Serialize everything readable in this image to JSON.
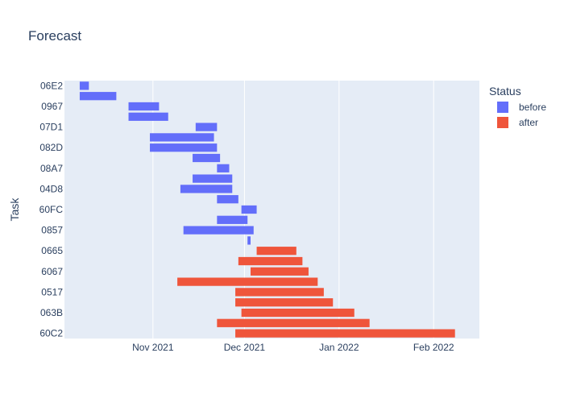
{
  "chart_data": {
    "type": "bar",
    "orientation": "horizontal-timeline",
    "title": "Forecast",
    "ylabel": "Task",
    "xlabel": "",
    "x_ticks": [
      {
        "date": "2021-11-01",
        "label": "Nov 2021"
      },
      {
        "date": "2021-12-01",
        "label": "Dec 2021"
      },
      {
        "date": "2022-01-01",
        "label": "Jan 2022"
      },
      {
        "date": "2022-02-01",
        "label": "Feb 2022"
      }
    ],
    "xlim": [
      "2021-10-03",
      "2022-02-16"
    ],
    "y_tick_labels": [
      "06E2",
      "0967",
      "07D1",
      "082D",
      "08A7",
      "04D8",
      "60FC",
      "0857",
      "0665",
      "6067",
      "0517",
      "063B",
      "60C2"
    ],
    "legend": {
      "title": "Status",
      "position": "top-right",
      "entries": [
        "before",
        "after"
      ]
    },
    "colors": {
      "before": "#636efa",
      "after": "#ef553b",
      "plot_bg": "#e5ecf6",
      "grid": "#ffffff"
    },
    "grid": true,
    "series": [
      {
        "name": "before",
        "bars": [
          {
            "row": 0,
            "start": "2021-10-08",
            "end": "2021-10-11"
          },
          {
            "row": 1,
            "start": "2021-10-08",
            "end": "2021-10-20"
          },
          {
            "row": 2,
            "start": "2021-10-24",
            "end": "2021-11-03"
          },
          {
            "row": 3,
            "start": "2021-10-24",
            "end": "2021-11-06"
          },
          {
            "row": 4,
            "start": "2021-11-15",
            "end": "2021-11-22"
          },
          {
            "row": 5,
            "start": "2021-10-31",
            "end": "2021-11-21"
          },
          {
            "row": 6,
            "start": "2021-10-31",
            "end": "2021-11-22"
          },
          {
            "row": 7,
            "start": "2021-11-14",
            "end": "2021-11-23"
          },
          {
            "row": 8,
            "start": "2021-11-22",
            "end": "2021-11-26"
          },
          {
            "row": 9,
            "start": "2021-11-14",
            "end": "2021-11-27"
          },
          {
            "row": 10,
            "start": "2021-11-10",
            "end": "2021-11-27"
          },
          {
            "row": 11,
            "start": "2021-11-22",
            "end": "2021-11-29"
          },
          {
            "row": 12,
            "start": "2021-11-30",
            "end": "2021-12-05"
          },
          {
            "row": 13,
            "start": "2021-11-22",
            "end": "2021-12-02"
          },
          {
            "row": 14,
            "start": "2021-11-11",
            "end": "2021-12-04"
          },
          {
            "row": 15,
            "start": "2021-12-02",
            "end": "2021-12-03"
          }
        ]
      },
      {
        "name": "after",
        "bars": [
          {
            "row": 16,
            "start": "2021-12-05",
            "end": "2021-12-18"
          },
          {
            "row": 17,
            "start": "2021-11-29",
            "end": "2021-12-20"
          },
          {
            "row": 18,
            "start": "2021-12-03",
            "end": "2021-12-22"
          },
          {
            "row": 19,
            "start": "2021-11-09",
            "end": "2021-12-25"
          },
          {
            "row": 20,
            "start": "2021-11-28",
            "end": "2021-12-27"
          },
          {
            "row": 21,
            "start": "2021-11-28",
            "end": "2021-12-30"
          },
          {
            "row": 22,
            "start": "2021-11-30",
            "end": "2022-01-06"
          },
          {
            "row": 23,
            "start": "2021-11-22",
            "end": "2022-01-11"
          },
          {
            "row": 24,
            "start": "2021-11-28",
            "end": "2022-02-08"
          }
        ]
      }
    ]
  }
}
